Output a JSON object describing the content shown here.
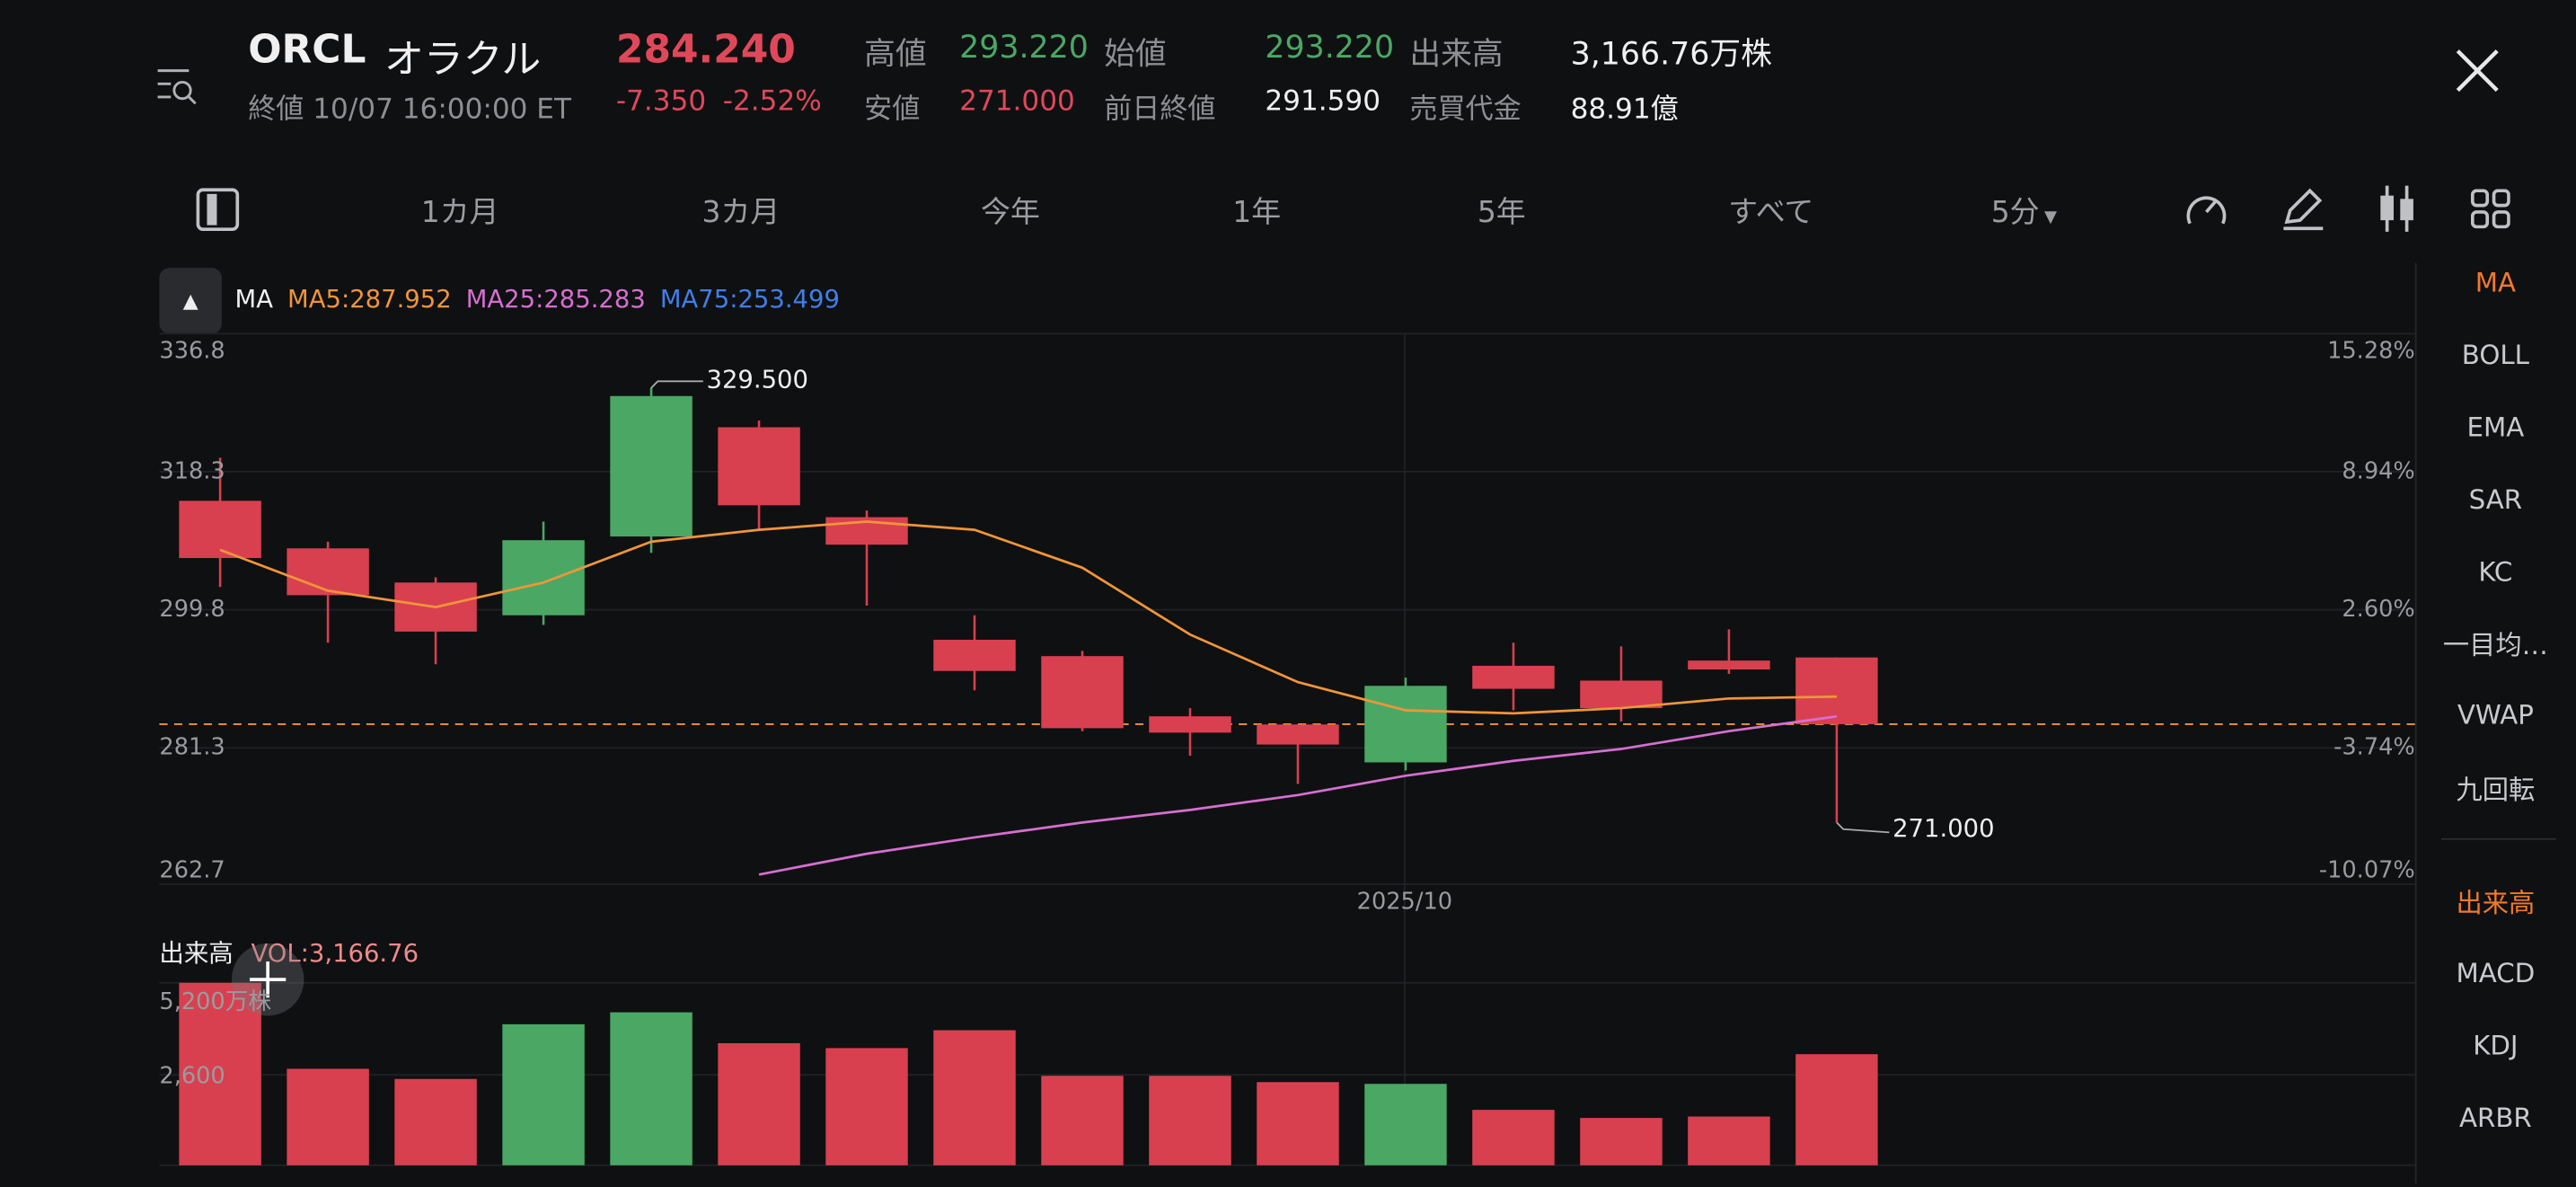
{
  "header": {
    "symbol": "ORCL",
    "name": "オラクル",
    "price": "284.240",
    "status": "終値 10/07 16:00:00 ET",
    "change": "-7.350",
    "change_pct": "-2.52%",
    "high_label": "高値",
    "high": "293.220",
    "low_label": "安値",
    "low": "271.000",
    "open_label": "始値",
    "open": "293.220",
    "prev_close_label": "前日終値",
    "prev_close": "291.590",
    "volume_label": "出来高",
    "volume": "3,166.76万株",
    "turnover_label": "売買代金",
    "turnover": "88.91億"
  },
  "toolbar": {
    "periods": [
      "1カ月",
      "3カ月",
      "今年",
      "1年",
      "5年",
      "すべて"
    ],
    "interval": "5分"
  },
  "ma_legend": {
    "label": "MA",
    "ma5": "MA5:287.952",
    "ma25": "MA25:285.283",
    "ma75": "MA75:253.499"
  },
  "vol_legend": {
    "label": "出来高",
    "value": "VOL:3,166.76"
  },
  "sidebar": {
    "main": [
      "MA",
      "BOLL",
      "EMA",
      "SAR",
      "KC",
      "一目均…",
      "VWAP",
      "九回転"
    ],
    "sub": [
      "出来高",
      "MACD",
      "KDJ",
      "ARBR"
    ]
  },
  "colors": {
    "up": "#4aa864",
    "down": "#d8404f",
    "ma5": "#f0953a",
    "ma25": "#d66fd0",
    "ma75": "#3f7fe8",
    "active": "#f07a2e"
  },
  "chart_data": {
    "type": "candlestick",
    "price_ticks": [
      "336.8",
      "318.3",
      "299.8",
      "281.3",
      "262.7"
    ],
    "pct_ticks": [
      "15.28%",
      "8.94%",
      "2.60%",
      "-3.74%",
      "-10.07%"
    ],
    "ylim": [
      262.7,
      336.8
    ],
    "x_label": "2025/10",
    "high_marker": "329.500",
    "low_marker": "271.000",
    "last_price": 284.24,
    "ohlc": [
      [
        314.3,
        320.1,
        302.7,
        306.6
      ],
      [
        307.9,
        308.8,
        295.2,
        301.6
      ],
      [
        303.3,
        304.0,
        292.3,
        296.7
      ],
      [
        298.9,
        311.5,
        297.6,
        309.0
      ],
      [
        309.5,
        329.5,
        307.3,
        328.4
      ],
      [
        324.2,
        325.1,
        310.4,
        313.7
      ],
      [
        312.1,
        313.0,
        300.2,
        308.4
      ],
      [
        295.6,
        298.9,
        288.8,
        291.4
      ],
      [
        293.4,
        294.1,
        283.3,
        283.7
      ],
      [
        285.3,
        286.4,
        280.0,
        283.1
      ],
      [
        284.2,
        284.2,
        276.2,
        281.5
      ],
      [
        279.1,
        290.5,
        278.0,
        289.4
      ],
      [
        292.1,
        295.2,
        286.1,
        289.0
      ],
      [
        290.1,
        294.7,
        284.6,
        286.4
      ],
      [
        292.8,
        297.0,
        291.0,
        291.6
      ],
      [
        293.22,
        293.22,
        271.0,
        284.24
      ]
    ],
    "ma5": [
      307.7,
      302.2,
      300.0,
      303.3,
      308.8,
      310.4,
      311.5,
      310.4,
      305.3,
      296.3,
      289.9,
      286.1,
      285.7,
      286.4,
      287.7,
      287.952
    ],
    "ma25": [
      null,
      null,
      null,
      null,
      null,
      264.0,
      266.8,
      269.0,
      271.0,
      272.7,
      274.7,
      277.3,
      279.3,
      280.9,
      283.3,
      285.283
    ],
    "volume": {
      "ticks": [
        "5,200万株",
        "2,600"
      ],
      "ylim": [
        0,
        5200
      ],
      "values": [
        5200,
        2750,
        2460,
        4020,
        4360,
        3480,
        3340,
        3850,
        2550,
        2550,
        2370,
        2320,
        1580,
        1350,
        1390,
        3166.76
      ]
    }
  }
}
